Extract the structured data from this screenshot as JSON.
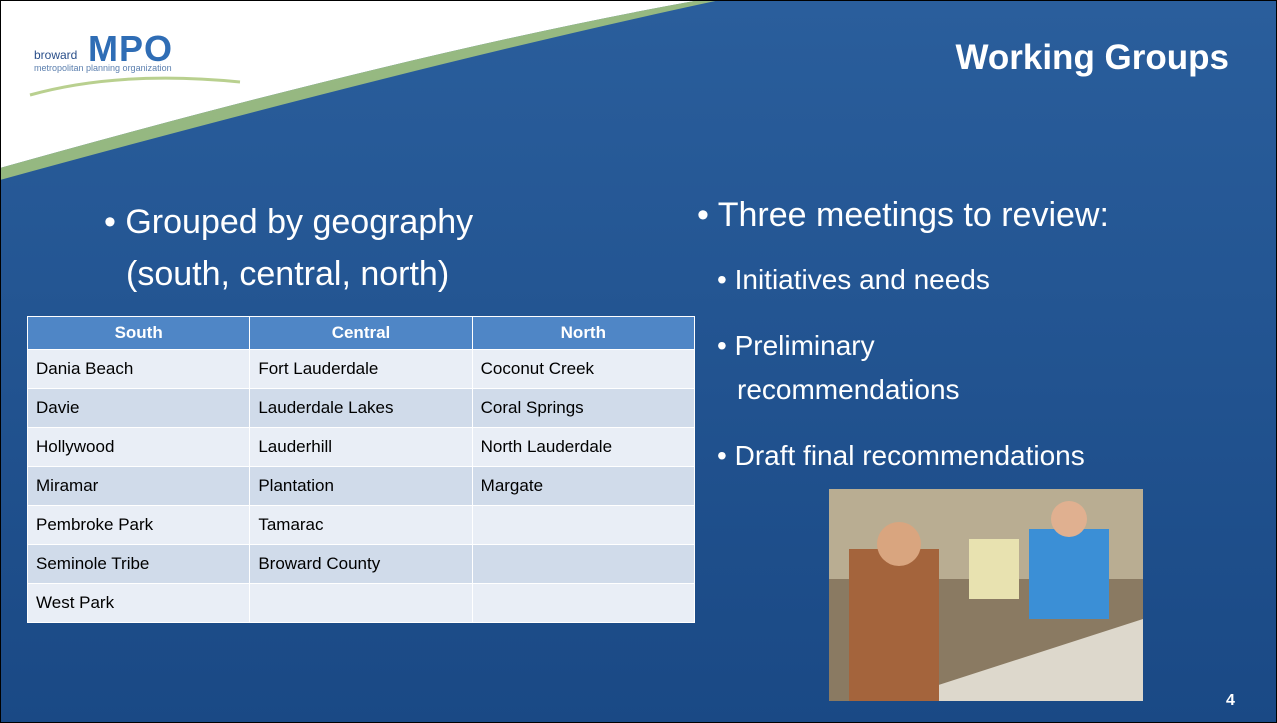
{
  "header": {
    "logo": {
      "small": "broward",
      "big": "MPO",
      "sub": "metropolitan planning organization"
    },
    "title": "Working Groups"
  },
  "left": {
    "bullet_lines": [
      "Grouped by geography",
      "(south, central, north)"
    ]
  },
  "table": {
    "columns": [
      "South",
      "Central",
      "North"
    ],
    "rows": [
      [
        "Dania Beach",
        "Fort Lauderdale",
        "Coconut Creek"
      ],
      [
        "Davie",
        "Lauderdale Lakes",
        "Coral Springs"
      ],
      [
        "Hollywood",
        "Lauderhill",
        "North Lauderdale"
      ],
      [
        "Miramar",
        "Plantation",
        "Margate"
      ],
      [
        "Pembroke Park",
        "Tamarac",
        null
      ],
      [
        "Seminole Tribe",
        "Broward County",
        null
      ],
      [
        "West Park",
        null,
        null
      ]
    ]
  },
  "right": {
    "bullet": "Three meetings to review:",
    "subbullets": [
      [
        "Initiatives and needs"
      ],
      [
        "Preliminary",
        "recommendations"
      ],
      [
        "Draft final recommendations"
      ]
    ]
  },
  "page_number": 4
}
